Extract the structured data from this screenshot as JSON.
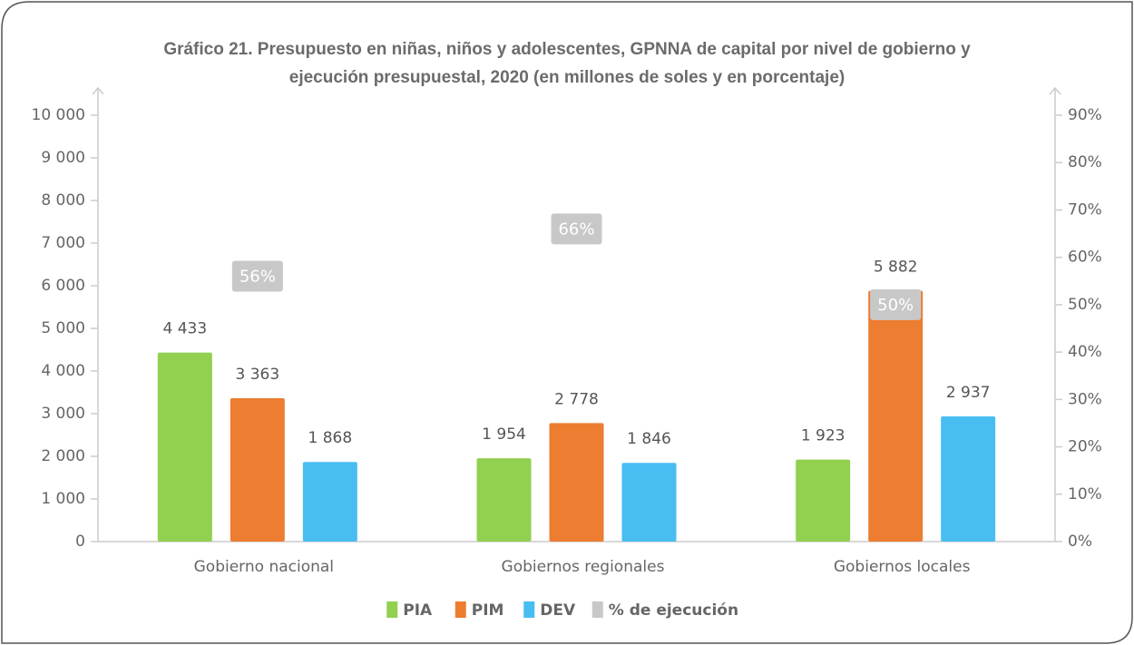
{
  "chart_data": {
    "type": "bar",
    "title": "Gráfico 21. Presupuesto en niñas, niños y adolescentes, GPNNA de capital por nivel de gobierno y",
    "subtitle": "ejecución presupuestal, 2020 (en millones de soles y en porcentaje)",
    "categories": [
      "Gobierno nacional",
      "Gobiernos regionales",
      "Gobiernos locales"
    ],
    "series": [
      {
        "name": "PIA",
        "color": "#92d050",
        "values": [
          4433,
          1954,
          1923
        ],
        "value_labels": [
          "4 433",
          "1 954",
          "1 923"
        ]
      },
      {
        "name": "PIM",
        "color": "#ed7d31",
        "values": [
          3363,
          2778,
          5882
        ],
        "value_labels": [
          "3 363",
          "2 778",
          "5 882"
        ]
      },
      {
        "name": "DEV",
        "color": "#48bdf2",
        "values": [
          1868,
          1846,
          2937
        ],
        "value_labels": [
          "1 868",
          "1 846",
          "2 937"
        ]
      },
      {
        "name": "% de ejecución",
        "color": "#c8c8c8",
        "axis": "y2",
        "values": [
          56,
          66,
          50
        ],
        "value_labels": [
          "56%",
          "66%",
          "50%"
        ]
      }
    ],
    "ylim": [
      0,
      10000
    ],
    "yticks": [
      0,
      {
        "value": 1000,
        "label": "1 000"
      },
      {
        "value": 2000,
        "label": "2 000"
      },
      {
        "value": 3000,
        "label": "3 000"
      },
      {
        "value": 4000,
        "label": "4 000"
      },
      {
        "value": 5000,
        "label": "5 000"
      },
      {
        "value": 6000,
        "label": "6 000"
      },
      {
        "value": 7000,
        "label": "7 000"
      },
      {
        "value": 8000,
        "label": "8 000"
      },
      {
        "value": 9000,
        "label": "9 000"
      },
      {
        "value": 10000,
        "label": "10 000"
      }
    ],
    "y2lim": [
      0,
      90
    ],
    "y2ticks": [
      {
        "value": 0,
        "label": "0%"
      },
      {
        "value": 10,
        "label": "10%"
      },
      {
        "value": 20,
        "label": "20%"
      },
      {
        "value": 30,
        "label": "30%"
      },
      {
        "value": 40,
        "label": "40%"
      },
      {
        "value": 50,
        "label": "50%"
      },
      {
        "value": 60,
        "label": "60%"
      },
      {
        "value": 70,
        "label": "70%"
      },
      {
        "value": 80,
        "label": "80%"
      },
      {
        "value": 90,
        "label": "90%"
      }
    ],
    "legend": "bottom",
    "grid": false
  }
}
